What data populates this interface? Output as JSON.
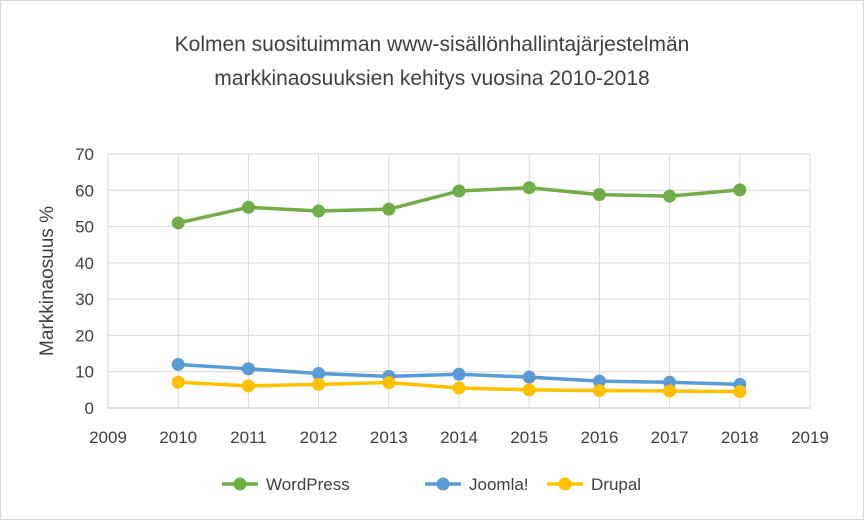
{
  "chart_data": {
    "type": "line",
    "title_line1": "Kolmen suosituimman www-sisällönhallintajärjestelmän",
    "title_line2": "markkinaosuuksien kehitys vuosina 2010-2018",
    "ylabel": "Markkinaosuus %",
    "xlim": [
      2009,
      2019
    ],
    "ylim": [
      0,
      70
    ],
    "x_ticks": [
      2009,
      2010,
      2011,
      2012,
      2013,
      2014,
      2015,
      2016,
      2017,
      2018,
      2019
    ],
    "y_ticks": [
      0,
      10,
      20,
      30,
      40,
      50,
      60,
      70
    ],
    "grid": true,
    "legend_position": "bottom",
    "x": [
      2010,
      2011,
      2012,
      2013,
      2014,
      2015,
      2016,
      2017,
      2018
    ],
    "series": [
      {
        "name": "WordPress",
        "color": "#70ad47",
        "values": [
          51.0,
          55.3,
          54.3,
          54.8,
          59.8,
          60.7,
          58.8,
          58.4,
          60.1
        ]
      },
      {
        "name": "Joomla!",
        "color": "#5b9bd5",
        "values": [
          12.0,
          10.8,
          9.5,
          8.7,
          9.3,
          8.5,
          7.4,
          7.1,
          6.5
        ]
      },
      {
        "name": "Drupal",
        "color": "#ffc000",
        "values": [
          7.1,
          6.1,
          6.5,
          7.0,
          5.5,
          5.0,
          4.8,
          4.7,
          4.5
        ]
      }
    ]
  }
}
